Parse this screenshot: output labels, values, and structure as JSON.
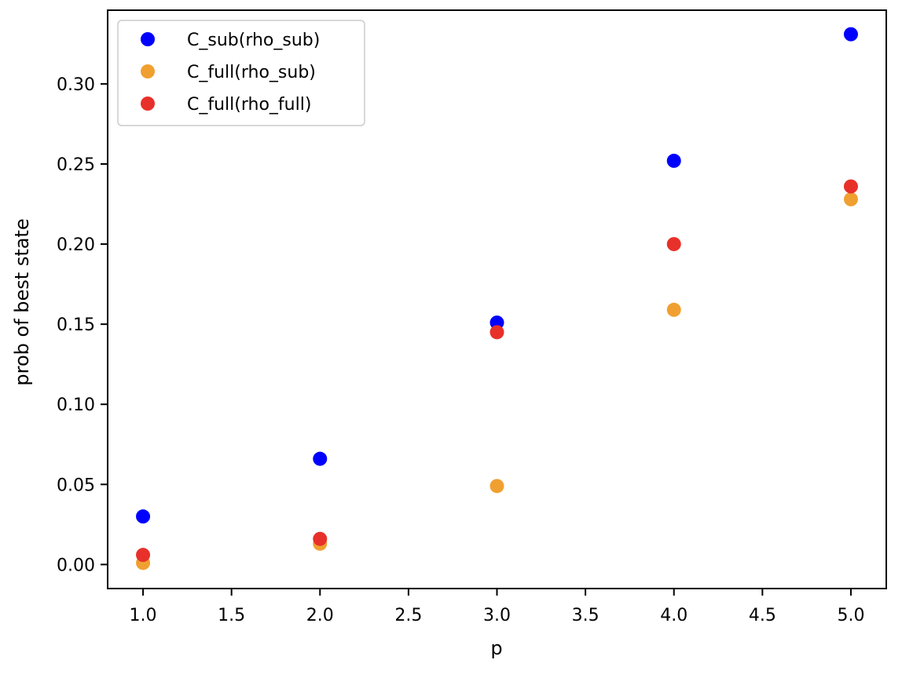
{
  "chart_data": {
    "type": "scatter",
    "title": "",
    "xlabel": "p",
    "ylabel": "prob of best state",
    "xlim": [
      0.8,
      5.2
    ],
    "ylim": [
      -0.015,
      0.346
    ],
    "x_ticks": [
      1.0,
      1.5,
      2.0,
      2.5,
      3.0,
      3.5,
      4.0,
      4.5,
      5.0
    ],
    "x_tick_labels": [
      "1.0",
      "1.5",
      "2.0",
      "2.5",
      "3.0",
      "3.5",
      "4.0",
      "4.5",
      "5.0"
    ],
    "y_ticks": [
      0.0,
      0.05,
      0.1,
      0.15,
      0.2,
      0.25,
      0.3
    ],
    "y_tick_labels": [
      "0.00",
      "0.05",
      "0.10",
      "0.15",
      "0.20",
      "0.25",
      "0.30"
    ],
    "grid": false,
    "legend_position": "top-left",
    "x": [
      1.0,
      2.0,
      3.0,
      4.0,
      5.0
    ],
    "series": [
      {
        "name": "C_sub(rho_sub)",
        "color": "#0000ff",
        "values": [
          0.03,
          0.066,
          0.151,
          0.252,
          0.331
        ]
      },
      {
        "name": "C_full(rho_sub)",
        "color": "#f0a030",
        "values": [
          0.001,
          0.013,
          0.049,
          0.159,
          0.228
        ]
      },
      {
        "name": "C_full(rho_full)",
        "color": "#e8302a",
        "values": [
          0.006,
          0.016,
          0.145,
          0.2,
          0.236
        ]
      }
    ]
  }
}
